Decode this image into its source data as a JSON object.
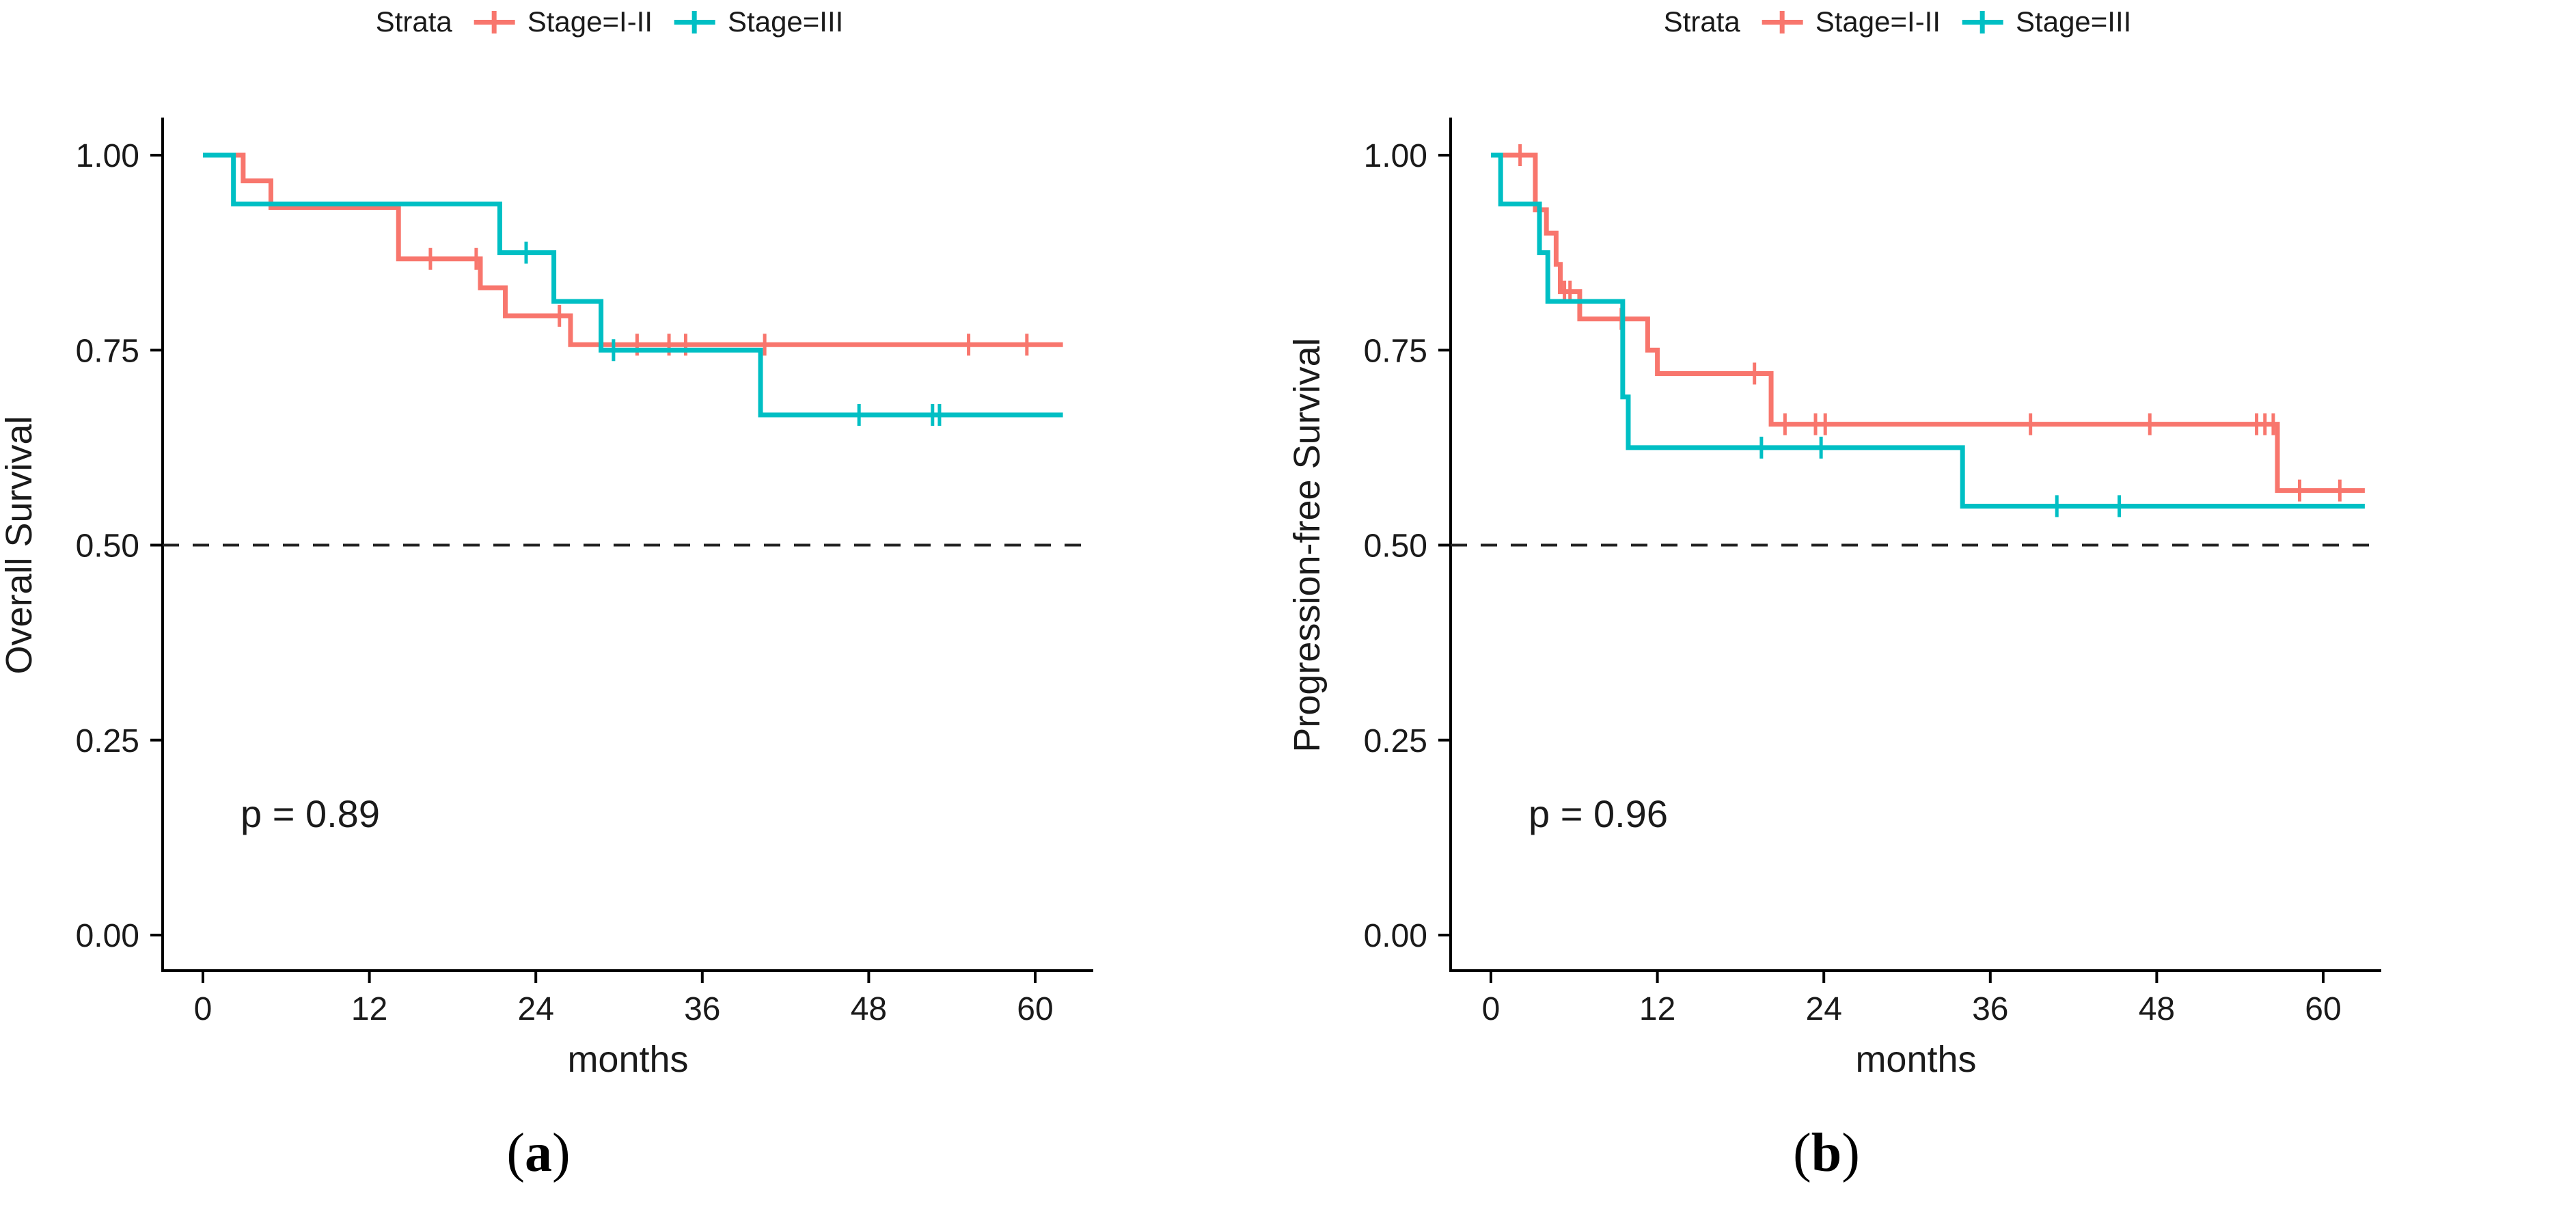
{
  "legend": {
    "title": "Strata",
    "items": [
      {
        "label": "Stage=I-II",
        "color": "#F8766D"
      },
      {
        "label": "Stage=III",
        "color": "#00BFC4"
      }
    ]
  },
  "panels": [
    {
      "caption_open": "(",
      "caption_letter": "a",
      "caption_close": ")"
    },
    {
      "caption_open": "(",
      "caption_letter": "b",
      "caption_close": ")"
    }
  ],
  "chart_data": [
    {
      "type": "line",
      "subtype": "kaplan-meier-step",
      "title": "",
      "xlabel": "months",
      "ylabel": "Overall Survival",
      "p_value_label": "p = 0.89",
      "x_ticks": [
        0,
        12,
        24,
        36,
        48,
        60
      ],
      "y_ticks": [
        {
          "value": 1.0,
          "label": "1.00"
        },
        {
          "value": 0.75,
          "label": "0.75"
        },
        {
          "value": 0.5,
          "label": "0.50"
        },
        {
          "value": 0.25,
          "label": "0.25"
        },
        {
          "value": 0.0,
          "label": "0.00"
        }
      ],
      "xlim": [
        0,
        64
      ],
      "ylim": [
        0,
        1.0
      ],
      "grid": false,
      "legend_position": "top",
      "reference_line": {
        "y": 0.5,
        "style": "dashed"
      },
      "series": [
        {
          "name": "Stage=I-II",
          "color": "#F8766D",
          "steps": [
            [
              0,
              1.0
            ],
            [
              2.9,
              0.967
            ],
            [
              4.9,
              0.933
            ],
            [
              14.1,
              0.867
            ],
            [
              20.0,
              0.83
            ],
            [
              21.8,
              0.794
            ],
            [
              26.5,
              0.757
            ]
          ],
          "end_x": 62,
          "censor_times": [
            16.4,
            19.7,
            25.7,
            31.3,
            33.6,
            34.8,
            40.5,
            55.2,
            59.4
          ]
        },
        {
          "name": "Stage=III",
          "color": "#00BFC4",
          "steps": [
            [
              0,
              1.0
            ],
            [
              2.2,
              0.9375
            ],
            [
              21.4,
              0.875
            ],
            [
              25.3,
              0.8125
            ],
            [
              28.7,
              0.75
            ],
            [
              40.2,
              0.667
            ]
          ],
          "end_x": 62,
          "censor_times": [
            23.3,
            29.6,
            47.3,
            52.6,
            53.1
          ]
        }
      ]
    },
    {
      "type": "line",
      "subtype": "kaplan-meier-step",
      "title": "",
      "xlabel": "months",
      "ylabel": "Progression-free Survival",
      "p_value_label": "p = 0.96",
      "x_ticks": [
        0,
        12,
        24,
        36,
        48,
        60
      ],
      "y_ticks": [
        {
          "value": 1.0,
          "label": "1.00"
        },
        {
          "value": 0.75,
          "label": "0.75"
        },
        {
          "value": 0.5,
          "label": "0.50"
        },
        {
          "value": 0.25,
          "label": "0.25"
        },
        {
          "value": 0.0,
          "label": "0.00"
        }
      ],
      "xlim": [
        0,
        64
      ],
      "ylim": [
        0,
        1.0
      ],
      "grid": false,
      "legend_position": "top",
      "reference_line": {
        "y": 0.5,
        "style": "dashed"
      },
      "series": [
        {
          "name": "Stage=I-II",
          "color": "#F8766D",
          "steps": [
            [
              0,
              1.0
            ],
            [
              3.2,
              0.93
            ],
            [
              4.0,
              0.9
            ],
            [
              4.7,
              0.86
            ],
            [
              5.0,
              0.825
            ],
            [
              6.4,
              0.79
            ],
            [
              11.3,
              0.75
            ],
            [
              12.0,
              0.72
            ],
            [
              20.2,
              0.655
            ],
            [
              56.7,
              0.57
            ]
          ],
          "end_x": 63,
          "censor_times": [
            2.1,
            5.3,
            5.7,
            9.4,
            19.0,
            21.2,
            23.4,
            24.1,
            38.9,
            47.5,
            55.2,
            55.8,
            56.4,
            58.3,
            61.2
          ]
        },
        {
          "name": "Stage=III",
          "color": "#00BFC4",
          "steps": [
            [
              0,
              1.0
            ],
            [
              0.7,
              0.9375
            ],
            [
              3.5,
              0.875
            ],
            [
              4.1,
              0.8125
            ],
            [
              9.5,
              0.69
            ],
            [
              9.9,
              0.625
            ],
            [
              34.0,
              0.55
            ]
          ],
          "end_x": 63,
          "censor_times": [
            19.5,
            23.8,
            40.8,
            45.3
          ]
        }
      ]
    }
  ]
}
